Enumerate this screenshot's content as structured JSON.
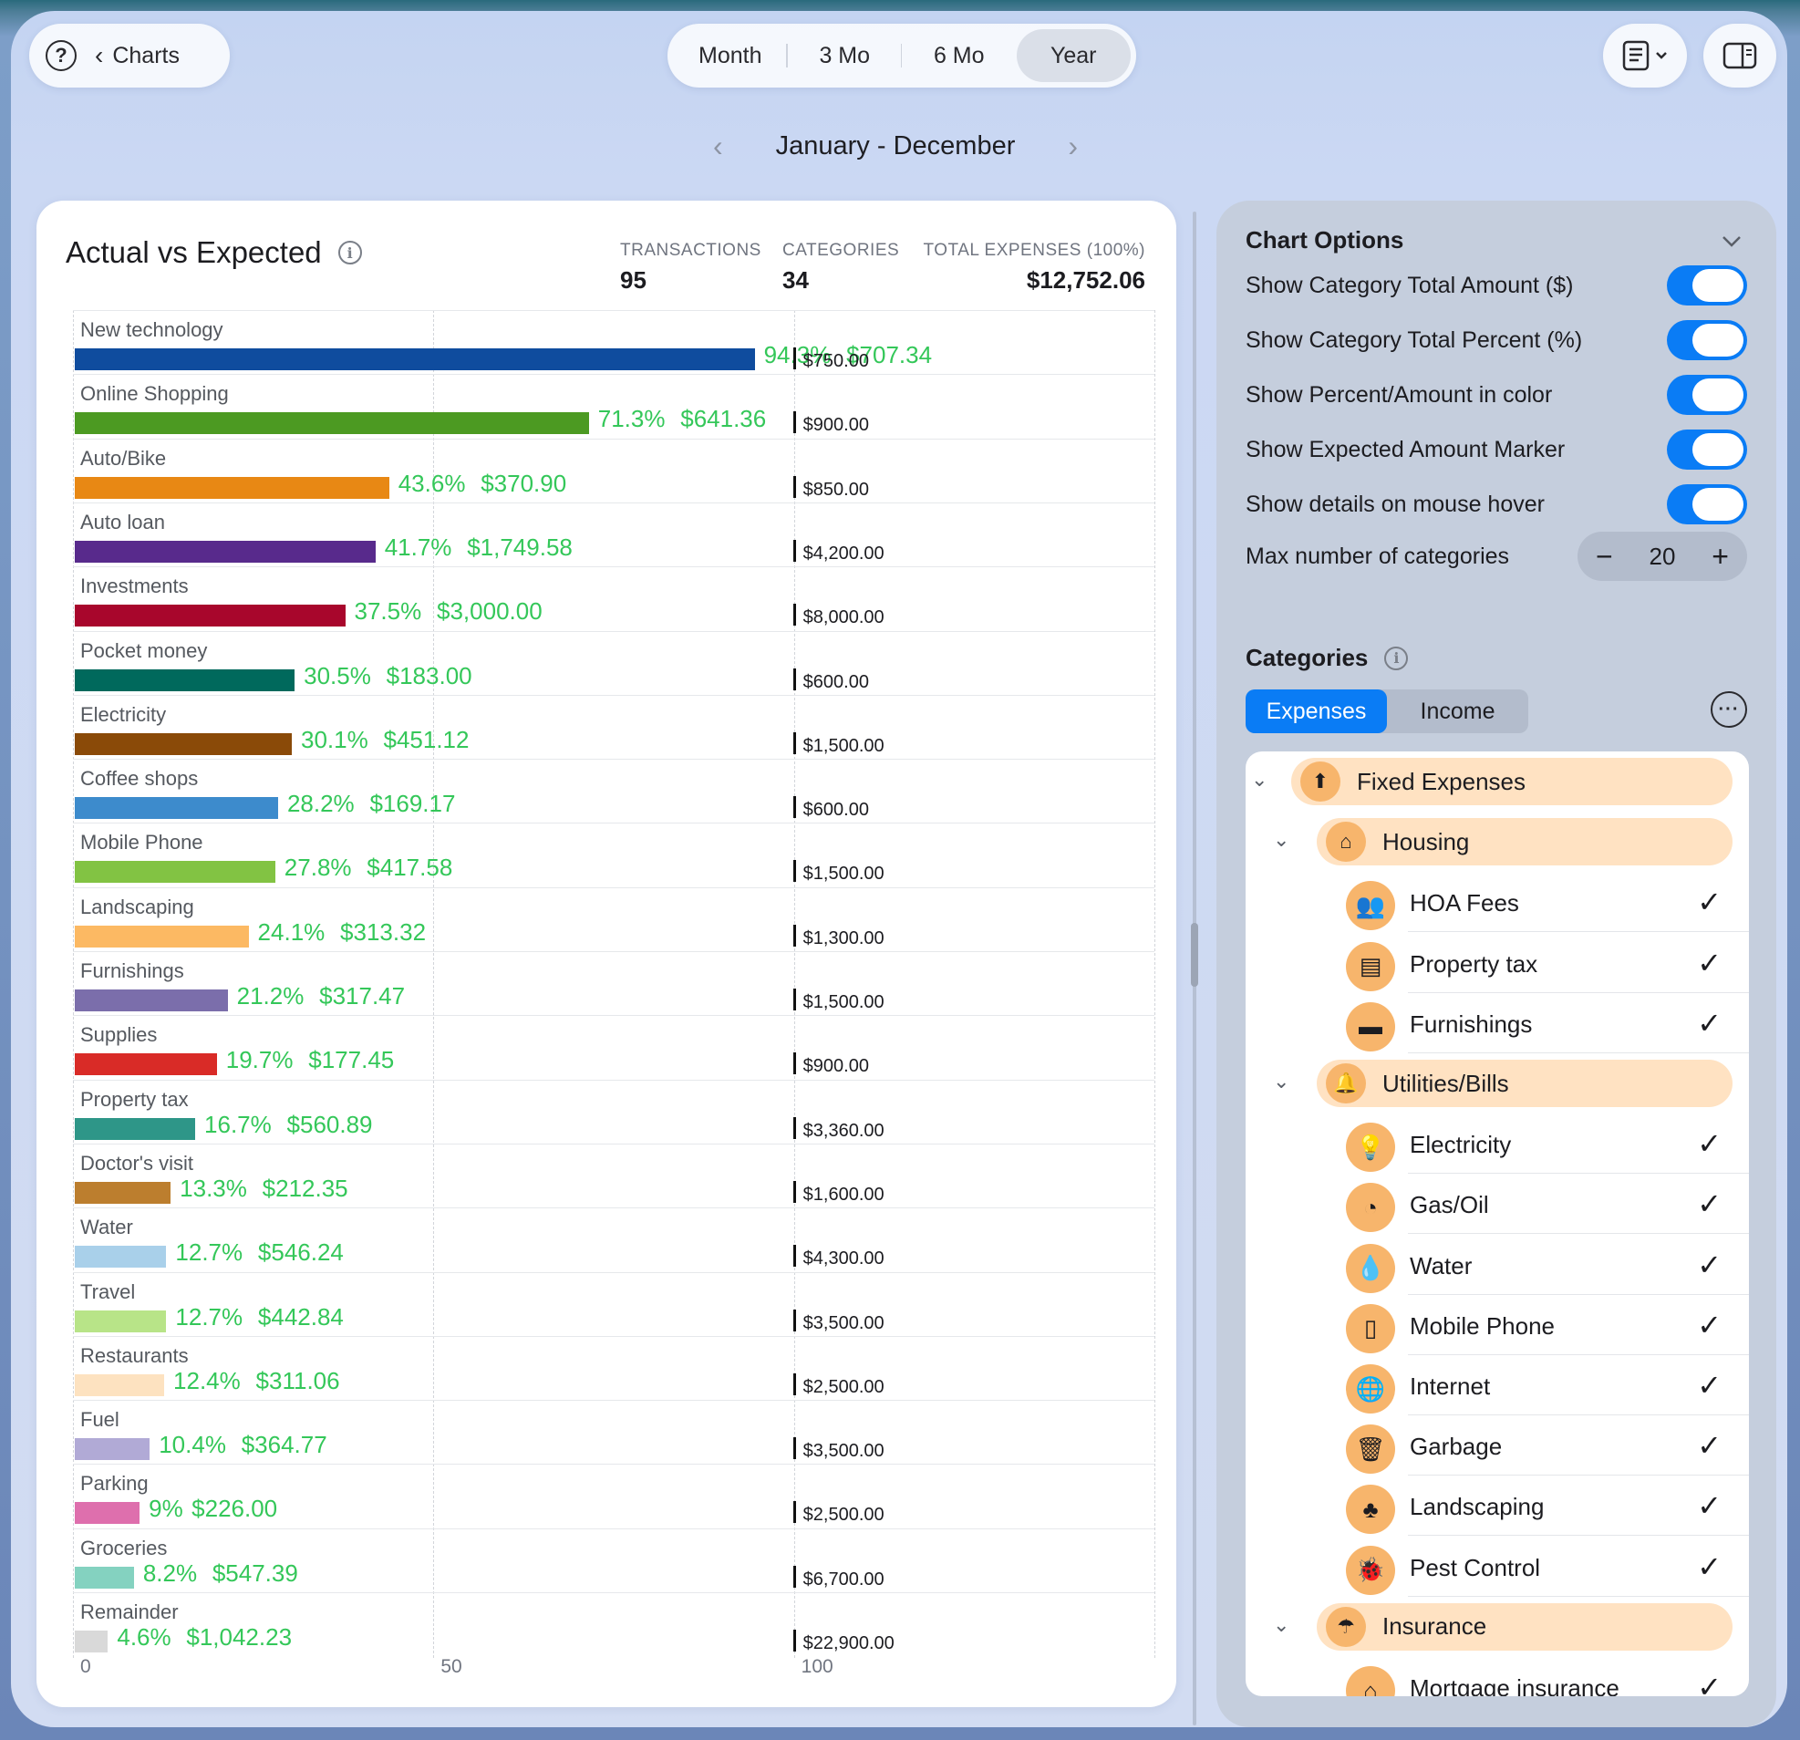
{
  "toolbar": {
    "back_label": "Charts",
    "periods": [
      "Month",
      "3 Mo",
      "6 Mo",
      "Year"
    ],
    "active_period": "Year"
  },
  "range": {
    "label": "January - December"
  },
  "card": {
    "title": "Actual vs Expected",
    "stats": {
      "transactions_label": "TRANSACTIONS",
      "transactions": "95",
      "categories_label": "CATEGORIES",
      "categories": "34",
      "total_label": "TOTAL EXPENSES (100%)",
      "total": "$12,752.06"
    }
  },
  "chart_data": {
    "type": "bar",
    "xlim": [
      0,
      150
    ],
    "x_ticks": [
      "0",
      "50",
      "100"
    ],
    "categories": [
      "New technology",
      "Online Shopping",
      "Auto/Bike",
      "Auto loan",
      "Investments",
      "Pocket money",
      "Electricity",
      "Coffee shops",
      "Mobile Phone",
      "Landscaping",
      "Furnishings",
      "Supplies",
      "Property tax",
      "Doctor's visit",
      "Water",
      "Travel",
      "Restaurants",
      "Fuel",
      "Parking",
      "Groceries",
      "Remainder"
    ],
    "percent_values": [
      94.3,
      71.3,
      43.6,
      41.7,
      37.5,
      30.5,
      30.1,
      28.2,
      27.8,
      24.1,
      21.2,
      19.7,
      16.7,
      13.3,
      12.7,
      12.7,
      12.4,
      10.4,
      9,
      8.2,
      4.6
    ],
    "percent_labels": [
      "94.3%",
      "71.3%",
      "43.6%",
      "41.7%",
      "37.5%",
      "30.5%",
      "30.1%",
      "28.2%",
      "27.8%",
      "24.1%",
      "21.2%",
      "19.7%",
      "16.7%",
      "13.3%",
      "12.7%",
      "12.7%",
      "12.4%",
      "10.4%",
      "9%",
      "8.2%",
      "4.6%"
    ],
    "actual_labels": [
      "$707.34",
      "$641.36",
      "$370.90",
      "$1,749.58",
      "$3,000.00",
      "$183.00",
      "$451.12",
      "$169.17",
      "$417.58",
      "$313.32",
      "$317.47",
      "$177.45",
      "$560.89",
      "$212.35",
      "$546.24",
      "$442.84",
      "$311.06",
      "$364.77",
      "$226.00",
      "$547.39",
      "$1,042.23"
    ],
    "expected_labels": [
      "$750.00",
      "$900.00",
      "$850.00",
      "$4,200.00",
      "$8,000.00",
      "$600.00",
      "$1,500.00",
      "$600.00",
      "$1,500.00",
      "$1,300.00",
      "$1,500.00",
      "$900.00",
      "$3,360.00",
      "$1,600.00",
      "$4,300.00",
      "$3,500.00",
      "$2,500.00",
      "$3,500.00",
      "$2,500.00",
      "$6,700.00",
      "$22,900.00"
    ],
    "expected_percent": 100,
    "colors": [
      "#0f4c9e",
      "#4c9a22",
      "#e88814",
      "#582a8c",
      "#a8062c",
      "#00695c",
      "#8a4a08",
      "#3d8bcc",
      "#82c343",
      "#fcb963",
      "#7b6eab",
      "#d92b27",
      "#2e9688",
      "#bc7e2e",
      "#a9d0ea",
      "#b8e488",
      "#fde2c0",
      "#b1aad6",
      "#de6fad",
      "#84d2c0",
      "#d9d9d9"
    ]
  },
  "options": {
    "title": "Chart Options",
    "items": [
      {
        "label": "Show Category Total Amount ($)",
        "on": true
      },
      {
        "label": "Show Category Total Percent (%)",
        "on": true
      },
      {
        "label": "Show Percent/Amount in color",
        "on": true
      },
      {
        "label": "Show Expected Amount Marker",
        "on": true
      },
      {
        "label": "Show details on mouse hover",
        "on": true
      }
    ],
    "max_label": "Max number of categories",
    "max_value": "20"
  },
  "categories_panel": {
    "title": "Categories",
    "tabs": [
      "Expenses",
      "Income"
    ],
    "active_tab": "Expenses",
    "tree": [
      {
        "kind": "group",
        "level": 0,
        "label": "Fixed Expenses",
        "icon": "pin-icon"
      },
      {
        "kind": "group",
        "level": 1,
        "label": "Housing",
        "icon": "house-icon"
      },
      {
        "kind": "leaf",
        "label": "HOA Fees",
        "icon": "people-icon",
        "checked": true
      },
      {
        "kind": "leaf",
        "label": "Property tax",
        "icon": "clipboard-icon",
        "checked": true
      },
      {
        "kind": "leaf",
        "label": "Furnishings",
        "icon": "sofa-icon",
        "checked": true
      },
      {
        "kind": "group",
        "level": 1,
        "label": "Utilities/Bills",
        "icon": "bell-icon"
      },
      {
        "kind": "leaf",
        "label": "Electricity",
        "icon": "lightbulb-icon",
        "checked": true
      },
      {
        "kind": "leaf",
        "label": "Gas/Oil",
        "icon": "gauge-icon",
        "checked": true
      },
      {
        "kind": "leaf",
        "label": "Water",
        "icon": "drop-icon",
        "checked": true
      },
      {
        "kind": "leaf",
        "label": "Mobile Phone",
        "icon": "phone-icon",
        "checked": true
      },
      {
        "kind": "leaf",
        "label": "Internet",
        "icon": "globe-icon",
        "checked": true
      },
      {
        "kind": "leaf",
        "label": "Garbage",
        "icon": "trash-icon",
        "checked": true
      },
      {
        "kind": "leaf",
        "label": "Landscaping",
        "icon": "tree-icon",
        "checked": true
      },
      {
        "kind": "leaf",
        "label": "Pest Control",
        "icon": "bug-icon",
        "checked": true
      },
      {
        "kind": "group",
        "level": 1,
        "label": "Insurance",
        "icon": "umbrella-icon"
      },
      {
        "kind": "leaf",
        "label": "Mortgage insurance",
        "icon": "house-shield-icon",
        "checked": true
      }
    ]
  }
}
